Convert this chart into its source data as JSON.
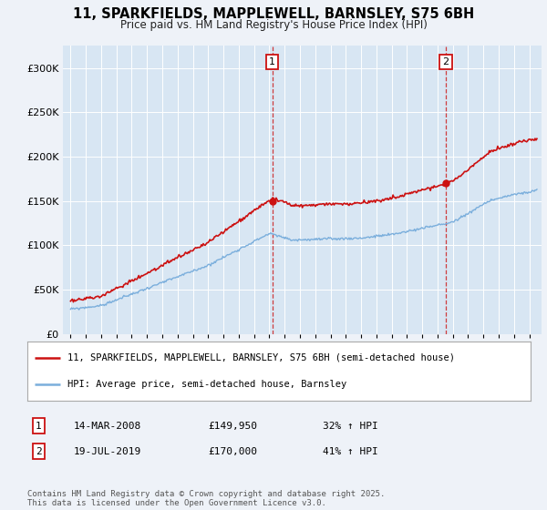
{
  "title_line1": "11, SPARKFIELDS, MAPPLEWELL, BARNSLEY, S75 6BH",
  "title_line2": "Price paid vs. HM Land Registry's House Price Index (HPI)",
  "background_color": "#eef2f8",
  "plot_bg_color": "#d8e6f3",
  "grid_color": "#ffffff",
  "sale1_date_x": 2008.2,
  "sale1_price": 149950,
  "sale1_label": "1",
  "sale2_date_x": 2019.55,
  "sale2_price": 170000,
  "sale2_label": "2",
  "ylim_min": 0,
  "ylim_max": 325000,
  "xlim_min": 1994.5,
  "xlim_max": 2025.8,
  "legend_line1": "11, SPARKFIELDS, MAPPLEWELL, BARNSLEY, S75 6BH (semi-detached house)",
  "legend_line2": "HPI: Average price, semi-detached house, Barnsley",
  "table_row1": [
    "1",
    "14-MAR-2008",
    "£149,950",
    "32% ↑ HPI"
  ],
  "table_row2": [
    "2",
    "19-JUL-2019",
    "£170,000",
    "41% ↑ HPI"
  ],
  "footer": "Contains HM Land Registry data © Crown copyright and database right 2025.\nThis data is licensed under the Open Government Licence v3.0.",
  "red_color": "#cc1111",
  "blue_color": "#7aaedc"
}
